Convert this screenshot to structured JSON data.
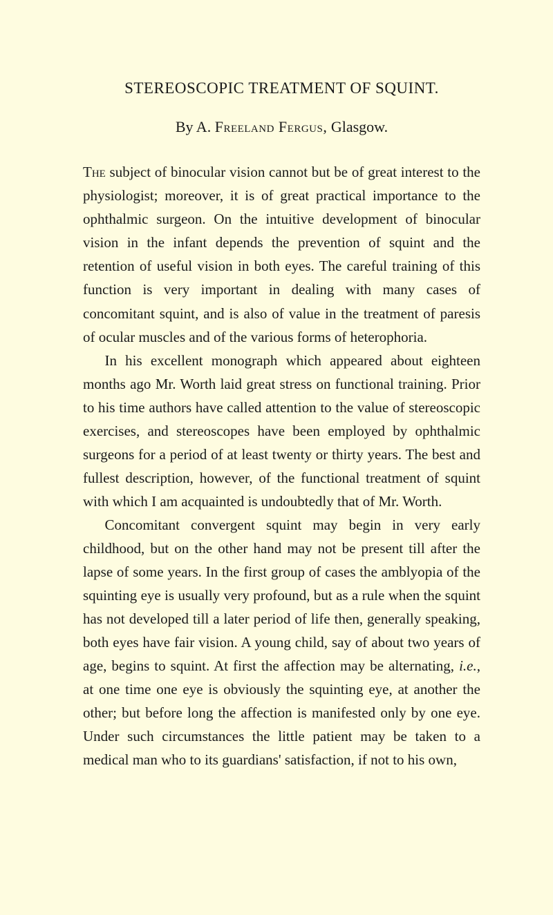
{
  "title": "STEREOSCOPIC TREATMENT OF SQUINT.",
  "byline_prefix": "By A. ",
  "byline_author": "Freeland Fergus,",
  "byline_suffix": " Glasgow.",
  "paragraphs": {
    "p1_lead": "The",
    "p1_rest": " subject of binocular vision cannot but be of great interest to the physiologist; moreover, it is of great practical importance to the ophthalmic surgeon. On the intuitive development of binocular vision in the infant depends the prevention of squint and the retention of useful vision in both eyes. The careful training of this function is very important in dealing with many cases of concomitant squint, and is also of value in the treatment of paresis of ocular muscles and of the various forms of heterophoria.",
    "p2": "In his excellent monograph which appeared about eighteen months ago Mr. Worth laid great stress on functional training. Prior to his time authors have called attention to the value of stereoscopic exercises, and stereoscopes have been employed by ophthalmic surgeons for a period of at least twenty or thirty years. The best and fullest description, however, of the functional treatment of squint with which I am acquainted is undoubtedly that of Mr. Worth.",
    "p3_a": "Concomitant convergent squint may begin in very early childhood, but on the other hand may not be present till after the lapse of some years. In the first group of cases the amblyopia of the squinting eye is usually very profound, but as a rule when the squint has not developed till a later period of life then, generally speaking, both eyes have fair vision. A young child, say of about two years of age, begins to squint. At first the affection may be alternating, ",
    "p3_ie": "i.e.",
    "p3_b": ", at one time one eye is obviously the squinting eye, at another the other; but before long the affection is manifested only by one eye. Under such circumstances the little patient may be taken to a medical man who to its guardians' satisfaction, if not to his own,"
  },
  "colors": {
    "background": "#fefce0",
    "text": "#1a1a1a"
  },
  "typography": {
    "title_fontsize": 23,
    "byline_fontsize": 22,
    "body_fontsize": 21,
    "line_height": 1.62
  }
}
